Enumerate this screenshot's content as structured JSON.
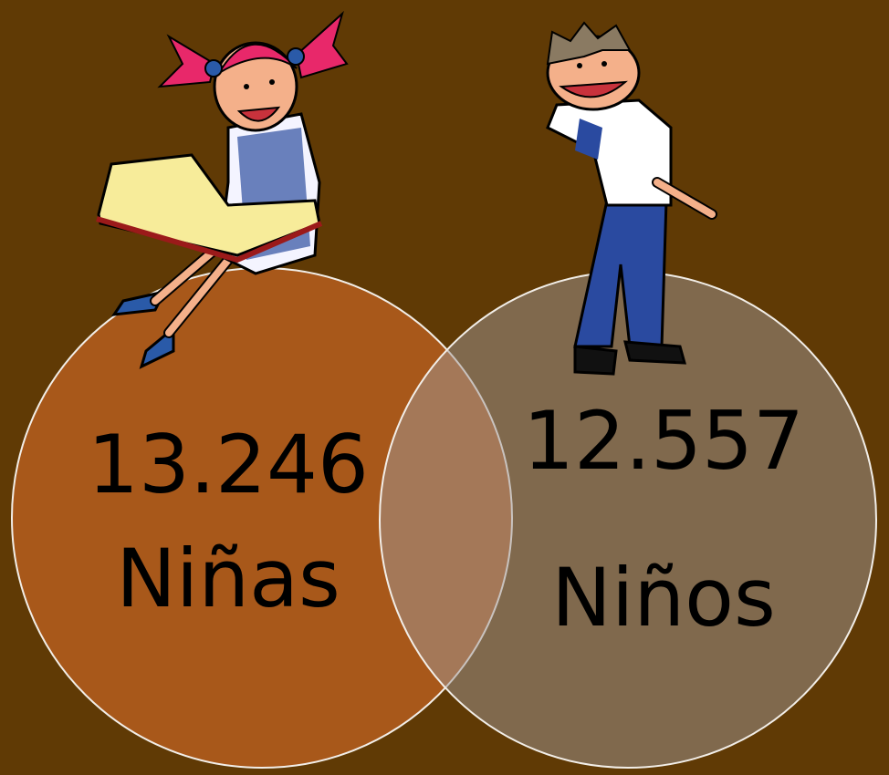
{
  "nodes": [
    {
      "count": "13.246",
      "label": "Niñas"
    },
    {
      "count": "12.557",
      "label": "Niños"
    }
  ]
}
